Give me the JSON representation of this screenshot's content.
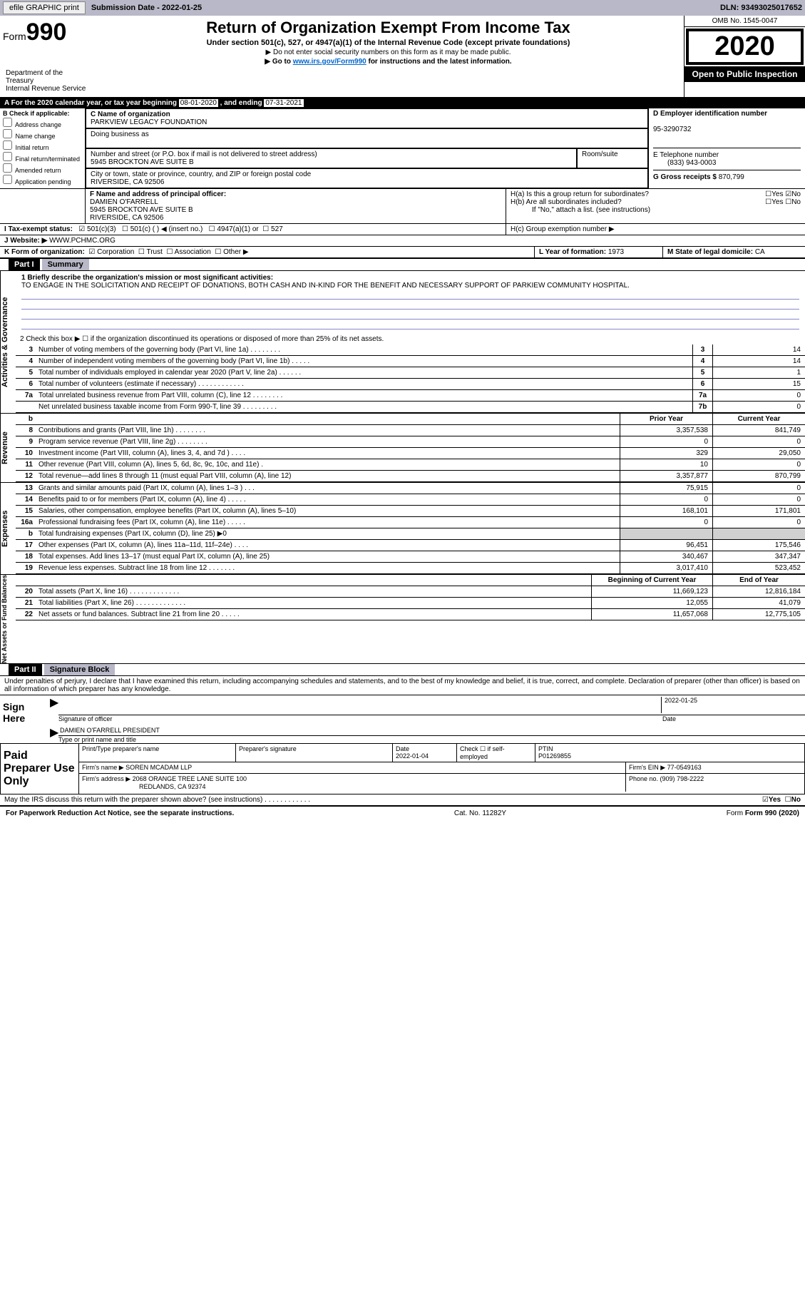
{
  "topbar": {
    "efile": "efile GRAPHIC print",
    "subdate_label": "Submission Date - ",
    "subdate": "2022-01-25",
    "dln_label": "DLN: ",
    "dln": "93493025017652"
  },
  "header": {
    "form": "Form",
    "n990": "990",
    "title": "Return of Organization Exempt From Income Tax",
    "sub": "Under section 501(c), 527, or 4947(a)(1) of the Internal Revenue Code (except private foundations)",
    "note1": "▶ Do not enter social security numbers on this form as it may be made public.",
    "note2a": "▶ Go to ",
    "note2link": "www.irs.gov/Form990",
    "note2b": " for instructions and the latest information.",
    "dept": "Department of the Treasury\nInternal Revenue Service",
    "omb": "OMB No. 1545-0047",
    "year": "2020",
    "open": "Open to Public Inspection"
  },
  "A": {
    "text": "A For the 2020 calendar year, or tax year beginning ",
    "begin": "08-01-2020",
    "mid": " , and ending ",
    "end": "07-31-2021"
  },
  "B": {
    "label": "B Check if applicable:",
    "opts": [
      "Address change",
      "Name change",
      "Initial return",
      "Final return/terminated",
      "Amended return",
      "Application pending"
    ]
  },
  "C": {
    "namelbl": "C Name of organization",
    "name": "PARKVIEW LEGACY FOUNDATION",
    "dba": "Doing business as",
    "addrlbl": "Number and street (or P.O. box if mail is not delivered to street address)",
    "addr": "5945 BROCKTON AVE SUITE B",
    "room": "Room/suite",
    "citylbl": "City or town, state or province, country, and ZIP or foreign postal code",
    "city": "RIVERSIDE, CA  92506"
  },
  "D": {
    "lbl": "D Employer identification number",
    "val": "95-3290732"
  },
  "E": {
    "lbl": "E Telephone number",
    "val": "(833) 943-0003"
  },
  "G": {
    "lbl": "G Gross receipts $ ",
    "val": "870,799"
  },
  "F": {
    "lbl": "F  Name and address of principal officer:",
    "name": "DAMIEN O'FARRELL",
    "addr1": "5945 BROCKTON AVE SUITE B",
    "addr2": "RIVERSIDE, CA  92506"
  },
  "H": {
    "a": "H(a)  Is this a group return for subordinates?",
    "b": "H(b)  Are all subordinates included?",
    "bif": "If \"No,\" attach a list. (see instructions)",
    "c": "H(c)  Group exemption number ▶",
    "yes": "Yes",
    "no": "No"
  },
  "I": {
    "lbl": "I    Tax-exempt status:",
    "c3": "501(c)(3)",
    "c": "501(c) (  ) ◀ (insert no.)",
    "a1": "4947(a)(1) or",
    "s527": "527"
  },
  "J": {
    "lbl": "J   Website: ▶ ",
    "val": "WWW.PCHMC.ORG"
  },
  "K": {
    "lbl": "K Form of organization:",
    "corp": "Corporation",
    "trust": "Trust",
    "assoc": "Association",
    "other": "Other ▶"
  },
  "LM": {
    "L": "L Year of formation: ",
    "Lv": "1973",
    "M": "M State of legal domicile: ",
    "Mv": "CA"
  },
  "part1": {
    "title": "Part I",
    "sub": "Summary",
    "q1": "1  Briefly describe the organization's mission or most significant activities:",
    "mission": "TO ENGAGE IN THE SOLICITATION AND RECEIPT OF DONATIONS, BOTH CASH AND IN-KIND FOR THE BENEFIT AND NECESSARY SUPPORT OF PARKIEW COMMUNITY HOSPITAL.",
    "q2": "2   Check this box ▶ ☐  if the organization discontinued its operations or disposed of more than 25% of its net assets."
  },
  "lines_gov": [
    {
      "n": "3",
      "d": "Number of voting members of the governing body (Part VI, line 1a)   .    .    .    .    .    .    .    .",
      "b": "3",
      "v": "14"
    },
    {
      "n": "4",
      "d": "Number of independent voting members of the governing body (Part VI, line 1b)   .    .    .    .    .",
      "b": "4",
      "v": "14"
    },
    {
      "n": "5",
      "d": "Total number of individuals employed in calendar year 2020 (Part V, line 2a)   .    .    .    .    .    .",
      "b": "5",
      "v": "1"
    },
    {
      "n": "6",
      "d": "Total number of volunteers (estimate if necessary)   .    .    .    .    .    .    .    .    .    .    .    .",
      "b": "6",
      "v": "15"
    },
    {
      "n": "7a",
      "d": "Total unrelated business revenue from Part VIII, column (C), line 12   .    .    .    .    .    .    .    .",
      "b": "7a",
      "v": "0"
    },
    {
      "n": "",
      "d": "Net unrelated business taxable income from Form 990-T, line 39   .    .    .    .    .    .    .    .    .",
      "b": "7b",
      "v": "0"
    }
  ],
  "colhdr": {
    "b": "b",
    "py": "Prior Year",
    "cy": "Current Year"
  },
  "lines_rev": [
    {
      "n": "8",
      "d": "Contributions and grants (Part VIII, line 1h)   .    .    .    .    .    .    .    .",
      "py": "3,357,538",
      "cy": "841,749"
    },
    {
      "n": "9",
      "d": "Program service revenue (Part VIII, line 2g)   .    .    .    .    .    .    .    .",
      "py": "0",
      "cy": "0"
    },
    {
      "n": "10",
      "d": "Investment income (Part VIII, column (A), lines 3, 4, and 7d )   .    .    .    .",
      "py": "329",
      "cy": "29,050"
    },
    {
      "n": "11",
      "d": "Other revenue (Part VIII, column (A), lines 5, 6d, 8c, 9c, 10c, and 11e)   .",
      "py": "10",
      "cy": "0"
    },
    {
      "n": "12",
      "d": "Total revenue—add lines 8 through 11 (must equal Part VIII, column (A), line 12)",
      "py": "3,357,877",
      "cy": "870,799"
    }
  ],
  "lines_exp": [
    {
      "n": "13",
      "d": "Grants and similar amounts paid (Part IX, column (A), lines 1–3 )   .    .    .",
      "py": "75,915",
      "cy": "0"
    },
    {
      "n": "14",
      "d": "Benefits paid to or for members (Part IX, column (A), line 4)   .    .    .    .    .",
      "py": "0",
      "cy": "0"
    },
    {
      "n": "15",
      "d": "Salaries, other compensation, employee benefits (Part IX, column (A), lines 5–10)",
      "py": "168,101",
      "cy": "171,801"
    },
    {
      "n": "16a",
      "d": "Professional fundraising fees (Part IX, column (A), line 11e)   .    .    .    .    .",
      "py": "0",
      "cy": "0"
    },
    {
      "n": "b",
      "d": "Total fundraising expenses (Part IX, column (D), line 25) ▶0",
      "py": "",
      "cy": "",
      "shade": true
    },
    {
      "n": "17",
      "d": "Other expenses (Part IX, column (A), lines 11a–11d, 11f–24e)   .    .    .    .",
      "py": "96,451",
      "cy": "175,546"
    },
    {
      "n": "18",
      "d": "Total expenses. Add lines 13–17 (must equal Part IX, column (A), line 25)",
      "py": "340,467",
      "cy": "347,347"
    },
    {
      "n": "19",
      "d": "Revenue less expenses. Subtract line 18 from line 12   .    .    .    .    .    .    .",
      "py": "3,017,410",
      "cy": "523,452"
    }
  ],
  "colhdr2": {
    "py": "Beginning of Current Year",
    "cy": "End of Year"
  },
  "lines_net": [
    {
      "n": "20",
      "d": "Total assets (Part X, line 16)   .    .    .    .    .    .    .    .    .    .    .    .    .",
      "py": "11,669,123",
      "cy": "12,816,184"
    },
    {
      "n": "21",
      "d": "Total liabilities (Part X, line 26)   .    .    .    .    .    .    .    .    .    .    .    .    .",
      "py": "12,055",
      "cy": "41,079"
    },
    {
      "n": "22",
      "d": "Net assets or fund balances. Subtract line 21 from line 20   .    .    .    .    .",
      "py": "11,657,068",
      "cy": "12,775,105"
    }
  ],
  "part2": {
    "title": "Part II",
    "sub": "Signature Block",
    "decl": "Under penalties of perjury, I declare that I have examined this return, including accompanying schedules and statements, and to the best of my knowledge and belief, it is true, correct, and complete. Declaration of preparer (other than officer) is based on all information of which preparer has any knowledge."
  },
  "sign": {
    "here": "Sign Here",
    "sigoff": "Signature of officer",
    "date": "Date",
    "datev": "2022-01-25",
    "name": "DAMIEN O'FARRELL  PRESIDENT",
    "type": "Type or print name and title"
  },
  "paid": {
    "title": "Paid Preparer Use Only",
    "h1": "Print/Type preparer's name",
    "h2": "Preparer's signature",
    "h3": "Date",
    "h3v": "2022-01-04",
    "h4": "Check ☐ if self-employed",
    "h5": "PTIN",
    "h5v": "P01269855",
    "firm": "Firm's name     ▶ ",
    "firmv": "SOREN MCADAM LLP",
    "ein": "Firm's EIN ▶ ",
    "einv": "77-0549163",
    "addr": "Firm's address ▶ ",
    "addrv": "2068 ORANGE TREE LANE SUITE 100",
    "city": "REDLANDS, CA  92374",
    "phone": "Phone no. ",
    "phonev": "(909) 798-2222"
  },
  "discuss": {
    "q": "May the IRS discuss this return with the preparer shown above? (see instructions)   .    .    .    .    .    .    .    .    .    .    .    .",
    "yes": "Yes",
    "no": "No"
  },
  "footer": {
    "pra": "For Paperwork Reduction Act Notice, see the separate instructions.",
    "cat": "Cat. No. 11282Y",
    "form": "Form 990 (2020)"
  },
  "vlabels": {
    "gov": "Activities & Governance",
    "rev": "Revenue",
    "exp": "Expenses",
    "net": "Net Assets or Fund Balances"
  }
}
